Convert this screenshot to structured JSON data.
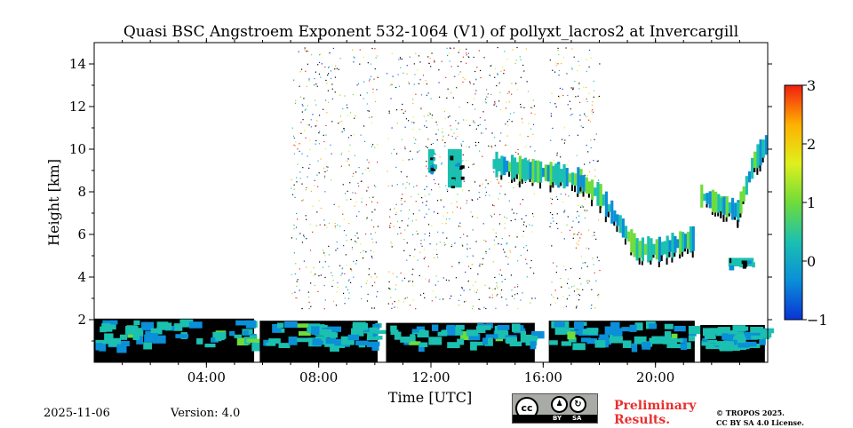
{
  "chart_data": {
    "type": "heatmap",
    "title": "Quasi BSC Angstroem Exponent 532-1064 (V1) of pollyxt_lacros2 at Invercargill",
    "xlabel": "Time [UTC]",
    "ylabel": "Height [km]",
    "xlim_hours": [
      0,
      24
    ],
    "ylim_km": [
      0,
      15
    ],
    "x_ticks": [
      {
        "value": 4,
        "label": "04:00"
      },
      {
        "value": 8,
        "label": "08:00"
      },
      {
        "value": 12,
        "label": "12:00"
      },
      {
        "value": 16,
        "label": "16:00"
      },
      {
        "value": 20,
        "label": "20:00"
      }
    ],
    "y_ticks": [
      {
        "value": 2,
        "label": "2"
      },
      {
        "value": 4,
        "label": "4"
      },
      {
        "value": 6,
        "label": "6"
      },
      {
        "value": 8,
        "label": "8"
      },
      {
        "value": 10,
        "label": "10"
      },
      {
        "value": 12,
        "label": "12"
      },
      {
        "value": 14,
        "label": "14"
      }
    ],
    "colorbar": {
      "min": -1,
      "max": 3,
      "ticks": [
        {
          "value": 3,
          "label": "3"
        },
        {
          "value": 2,
          "label": "2"
        },
        {
          "value": 1,
          "label": "1"
        },
        {
          "value": 0,
          "label": "0"
        },
        {
          "value": -1,
          "label": "−1"
        }
      ],
      "colors": [
        "#0a33d6",
        "#0a8fd8",
        "#1bc0b0",
        "#6fdc3a",
        "#dff01c",
        "#ffb000",
        "#f01e10"
      ]
    },
    "features": [
      {
        "name": "boundary layer",
        "segments": [
          [
            0,
            5.7,
            0,
            2.3
          ],
          [
            5.9,
            10.1,
            0,
            2.2
          ],
          [
            10.4,
            15.7,
            0,
            2.1
          ],
          [
            16.2,
            21.4,
            0,
            2.2
          ],
          [
            21.6,
            23.9,
            0,
            2.0
          ]
        ],
        "value": 0.3
      },
      {
        "name": "cirrus layer 1",
        "segments": [
          [
            11.9,
            12.1,
            8.9,
            10.0
          ],
          [
            12.6,
            13.1,
            8.2,
            10.0
          ]
        ],
        "value": 0.2
      },
      {
        "name": "cirrus layer 2",
        "path": [
          [
            14.2,
            9.3
          ],
          [
            15.5,
            9.0
          ],
          [
            16.5,
            8.8
          ],
          [
            17.3,
            8.5
          ],
          [
            18.0,
            7.8
          ],
          [
            18.8,
            6.3
          ],
          [
            19.3,
            5.3
          ],
          [
            20.1,
            5.3
          ],
          [
            21.3,
            5.8
          ]
        ],
        "value": 0.4
      },
      {
        "name": "cirrus layer 3",
        "path": [
          [
            21.6,
            7.8
          ],
          [
            22.3,
            7.4
          ],
          [
            22.9,
            7.1
          ],
          [
            23.5,
            9.5
          ],
          [
            23.9,
            10.2
          ]
        ],
        "value": 0.6
      },
      {
        "name": "elevated layer",
        "segments": [
          [
            22.6,
            23.5,
            4.5,
            4.9
          ]
        ],
        "value": 0.2
      }
    ],
    "data_gaps_hours": [
      [
        5.7,
        5.9
      ],
      [
        10.1,
        10.4
      ],
      [
        15.7,
        16.2
      ],
      [
        21.4,
        21.6
      ]
    ]
  },
  "footer": {
    "date": "2025-11-06",
    "version": "Version: 4.0",
    "license_badge": {
      "by": "BY",
      "sa": "SA",
      "cc": "cc"
    },
    "preliminary_line1": "Preliminary",
    "preliminary_line2": "Results.",
    "copyright_line1": "© TROPOS 2025.",
    "copyright_line2": "CC BY SA 4.0 License."
  }
}
